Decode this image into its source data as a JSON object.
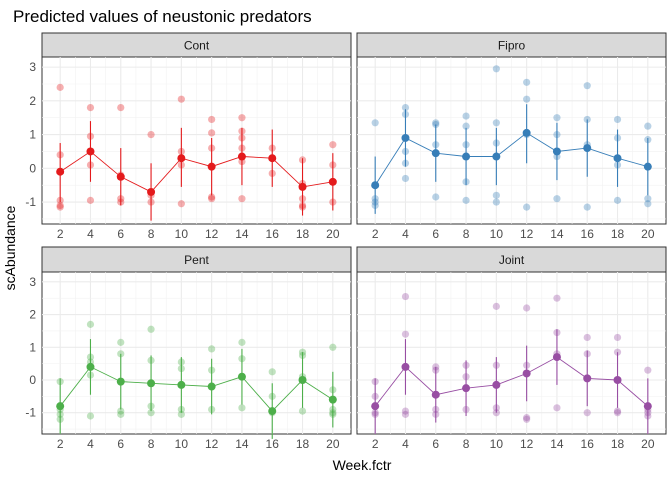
{
  "chart_data": {
    "type": "scatter",
    "title": "Predicted values of neustonic predators",
    "xlabel": "Week.fctr",
    "ylabel": "scAbundance",
    "categories": [
      "2",
      "4",
      "6",
      "8",
      "10",
      "12",
      "14",
      "16",
      "18",
      "20"
    ],
    "ylim": [
      -1.65,
      3.3
    ],
    "yticks": [
      -1,
      0,
      1,
      2,
      3
    ],
    "grid": true,
    "legend": "none",
    "panels": [
      {
        "name": "Cont",
        "color": "#e41a1c",
        "predicted": [
          -0.1,
          0.5,
          -0.25,
          -0.7,
          0.3,
          0.05,
          0.35,
          0.3,
          -0.55,
          -0.4
        ],
        "ci_low": [
          -1.0,
          -0.4,
          -1.1,
          -1.55,
          -0.55,
          -0.8,
          -0.5,
          -0.55,
          -1.4,
          -1.25
        ],
        "ci_high": [
          0.75,
          1.4,
          0.6,
          0.15,
          1.2,
          0.9,
          1.2,
          1.15,
          0.3,
          0.45
        ],
        "observed": [
          [
            2.4,
            0.4,
            -0.95,
            -1.1,
            -1.15
          ],
          [
            1.8,
            0.95,
            0.1,
            -0.95
          ],
          [
            1.8,
            -0.2,
            -0.9,
            -1.0
          ],
          [
            1.0,
            -0.8,
            -1.0
          ],
          [
            2.05,
            0.5,
            0.1,
            -1.05
          ],
          [
            1.45,
            1.05,
            0.6,
            0.05,
            -0.85,
            -0.9
          ],
          [
            1.5,
            1.1,
            0.9,
            0.6,
            0.2,
            -0.9
          ],
          [
            0.6,
            0.3,
            -0.15
          ],
          [
            0.25,
            -0.45,
            -0.9,
            -1.1,
            -1.15
          ],
          [
            0.7,
            0.1,
            -0.4,
            -1.0
          ]
        ]
      },
      {
        "name": "Fipro",
        "color": "#377eb8",
        "predicted": [
          -0.5,
          0.9,
          0.45,
          0.35,
          0.35,
          1.05,
          0.5,
          0.6,
          0.3,
          0.05
        ],
        "ci_low": [
          -1.35,
          0.05,
          -0.4,
          -0.5,
          -0.5,
          0.15,
          -0.35,
          -0.25,
          -0.55,
          -0.8
        ],
        "ci_high": [
          0.35,
          1.75,
          1.3,
          1.2,
          1.2,
          1.9,
          1.35,
          1.45,
          1.15,
          0.9
        ],
        "observed": [
          [
            1.35,
            -0.9,
            -1.0,
            -1.1
          ],
          [
            1.8,
            1.6,
            0.5,
            0.15,
            -0.3
          ],
          [
            1.35,
            1.3,
            0.7,
            -0.85
          ],
          [
            1.55,
            1.25,
            0.7,
            -0.4,
            -0.95
          ],
          [
            2.95,
            1.35,
            0.75,
            -0.8,
            -1.0
          ],
          [
            2.55,
            2.05,
            1.0,
            -1.15
          ],
          [
            1.5,
            1.0,
            0.35,
            -0.9
          ],
          [
            2.45,
            1.45,
            0.7,
            -1.15
          ],
          [
            1.45,
            0.9,
            0.1,
            -0.95
          ],
          [
            1.25,
            0.85,
            -0.9,
            -1.05
          ]
        ]
      },
      {
        "name": "Pent",
        "color": "#4daf4a",
        "predicted": [
          -0.8,
          0.4,
          -0.05,
          -0.1,
          -0.15,
          -0.2,
          0.1,
          -0.95,
          0.0,
          -0.6
        ],
        "ci_low": [
          -1.65,
          -0.45,
          -0.9,
          -0.95,
          -1.0,
          -1.05,
          -0.75,
          -1.8,
          -0.85,
          -1.45
        ],
        "ci_high": [
          0.05,
          1.25,
          0.8,
          0.75,
          0.7,
          0.65,
          0.95,
          -0.1,
          0.85,
          0.25
        ],
        "observed": [
          [
            -0.05,
            -0.9,
            -1.05,
            -1.2
          ],
          [
            1.7,
            0.7,
            0.55,
            0.15,
            -1.1
          ],
          [
            1.15,
            0.8,
            -0.95,
            -1.05
          ],
          [
            1.55,
            0.6,
            -0.8,
            -1.0
          ],
          [
            0.55,
            0.35,
            -0.9,
            -1.05
          ],
          [
            0.95,
            0.3,
            -0.9
          ],
          [
            1.15,
            0.65,
            0.1,
            -0.85
          ],
          [
            0.25,
            -0.5,
            -1.0
          ],
          [
            0.85,
            0.75,
            0.1,
            -0.95
          ],
          [
            1.0,
            -0.3,
            -0.9,
            -1.0,
            -1.05
          ]
        ]
      },
      {
        "name": "Joint",
        "color": "#984ea3",
        "predicted": [
          -0.8,
          0.4,
          -0.45,
          -0.25,
          -0.15,
          0.2,
          0.7,
          0.05,
          0.0,
          -0.8
        ],
        "ci_low": [
          -1.65,
          -0.45,
          -1.3,
          -1.1,
          -1.0,
          -0.65,
          -0.15,
          -0.8,
          -0.85,
          -1.65
        ],
        "ci_high": [
          0.05,
          1.25,
          0.4,
          0.6,
          0.7,
          1.05,
          1.55,
          0.9,
          0.85,
          0.05
        ],
        "observed": [
          [
            -0.05,
            -0.5,
            -1.0,
            -1.05
          ],
          [
            2.55,
            1.4,
            -0.95,
            -1.05
          ],
          [
            0.4,
            0.3,
            -0.9,
            -1.05
          ],
          [
            0.45,
            0.1,
            -0.9
          ],
          [
            2.25,
            0.45,
            -0.85,
            -1.0
          ],
          [
            2.2,
            0.45,
            -1.15,
            -1.2
          ],
          [
            2.5,
            1.45,
            0.8,
            -0.85
          ],
          [
            1.3,
            0.8,
            -1.0
          ],
          [
            1.3,
            0.85,
            -0.95,
            -1.0
          ],
          [
            0.3,
            -0.9,
            -1.0,
            -1.1
          ]
        ]
      }
    ]
  }
}
